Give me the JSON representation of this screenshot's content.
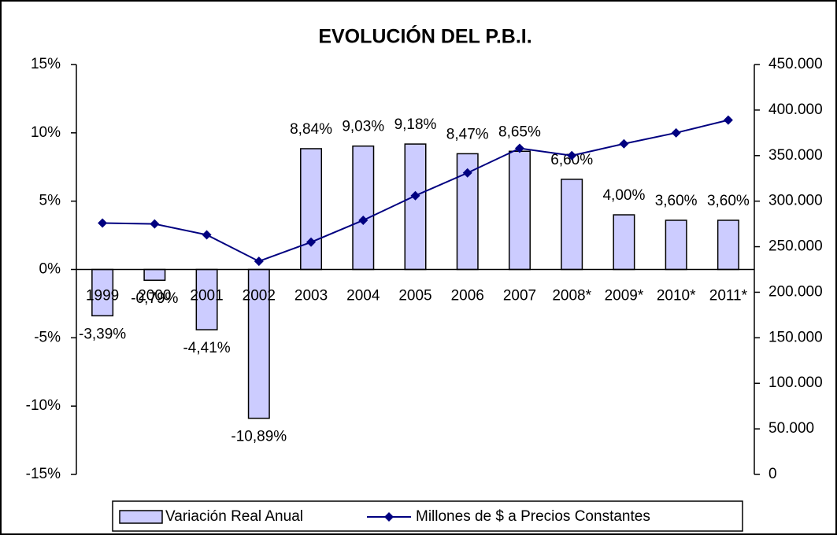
{
  "chart_data": {
    "type": "bar_line",
    "title": "EVOLUCIÓN DEL P.B.I.",
    "categories": [
      "1999",
      "2000",
      "2001",
      "2002",
      "2003",
      "2004",
      "2005",
      "2006",
      "2007",
      "2008*",
      "2009*",
      "2010*",
      "2011*"
    ],
    "series": [
      {
        "name": "Variación Real Anual",
        "type": "bar",
        "color": "#ccccff",
        "values": [
          -3.39,
          -0.79,
          -4.41,
          -10.89,
          8.84,
          9.03,
          9.18,
          8.47,
          8.65,
          6.6,
          4.0,
          3.6,
          3.6
        ],
        "value_labels": [
          "-3,39%",
          "-0,79%",
          "-4,41%",
          "-10,89%",
          "8,84%",
          "9,03%",
          "9,18%",
          "8,47%",
          "8,65%",
          "6,60%",
          "4,00%",
          "3,60%",
          "3,60%"
        ]
      },
      {
        "name": "Millones de $ a Precios Constantes",
        "type": "line",
        "color": "#000080",
        "axis": "y2",
        "values": [
          276000,
          275000,
          263000,
          234000,
          255000,
          279000,
          306000,
          331000,
          358000,
          350000,
          363000,
          375000,
          389000
        ]
      }
    ],
    "ylim": [
      -15,
      15
    ],
    "yticks": [
      {
        "value": -15,
        "label": "-15%"
      },
      {
        "value": -10,
        "label": "-10%"
      },
      {
        "value": -5,
        "label": "-5%"
      },
      {
        "value": 0,
        "label": "0%"
      },
      {
        "value": 5,
        "label": "5%"
      },
      {
        "value": 10,
        "label": "10%"
      },
      {
        "value": 15,
        "label": "15%"
      }
    ],
    "y2lim": [
      0,
      450000
    ],
    "y2ticks": [
      0,
      {
        "value": 50000,
        "label": "50.000"
      },
      {
        "value": 100000,
        "label": "100.000"
      },
      {
        "value": 150000,
        "label": "150.000"
      },
      {
        "value": 200000,
        "label": "200.000"
      },
      {
        "value": 250000,
        "label": "250.000"
      },
      {
        "value": 300000,
        "label": "300.000"
      },
      {
        "value": 350000,
        "label": "350.000"
      },
      {
        "value": 400000,
        "label": "400.000"
      },
      {
        "value": 450000,
        "label": "450.000"
      }
    ],
    "legend": "bottom"
  }
}
